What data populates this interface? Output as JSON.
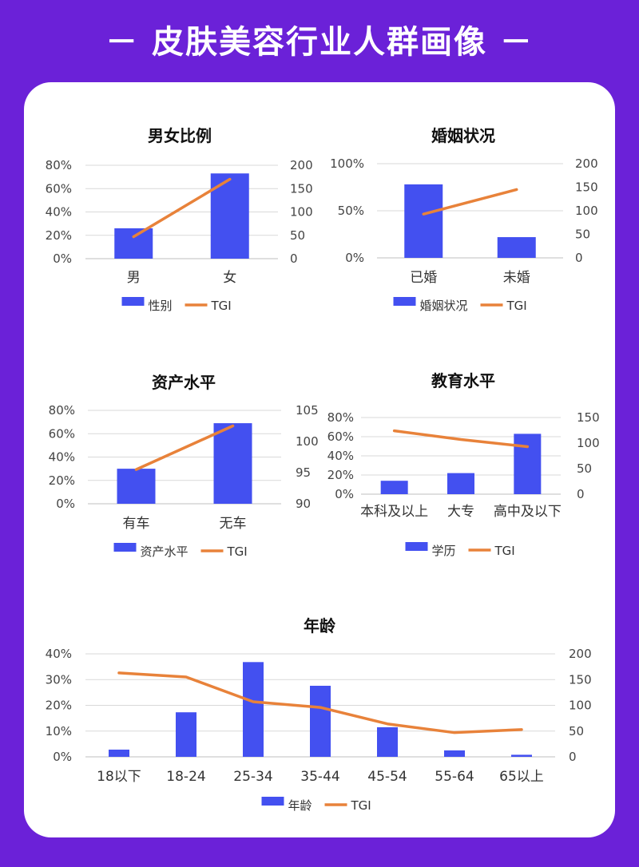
{
  "page": {
    "title": "－ 皮肤美容行业人群画像 －",
    "background_color": "#6b21d8",
    "card_color": "#ffffff"
  },
  "colors": {
    "bar": "#4350f0",
    "line": "#e8823a"
  },
  "chart_data": [
    {
      "type": "bar+line",
      "title": "男女比例",
      "categories": [
        "男",
        "女"
      ],
      "series": [
        {
          "name": "性别",
          "kind": "bar",
          "axis": "left",
          "values": [
            26,
            73
          ]
        },
        {
          "name": "TGI",
          "kind": "line",
          "axis": "right",
          "values": [
            47,
            170
          ]
        }
      ],
      "left_axis": {
        "ylim": [
          0,
          80
        ],
        "ticks": [
          0,
          20,
          40,
          60,
          80
        ],
        "tick_labels": [
          "0%",
          "20%",
          "40%",
          "60%",
          "80%"
        ]
      },
      "right_axis": {
        "ylim": [
          0,
          200
        ],
        "ticks": [
          0,
          50,
          100,
          150,
          200
        ],
        "tick_labels": [
          "0",
          "50",
          "100",
          "150",
          "200"
        ]
      },
      "legend": [
        "性别",
        "TGI"
      ]
    },
    {
      "type": "bar+line",
      "title": "婚姻状况",
      "categories": [
        "已婚",
        "未婚"
      ],
      "series": [
        {
          "name": "婚姻状况",
          "kind": "bar",
          "axis": "left",
          "values": [
            78,
            22
          ]
        },
        {
          "name": "TGI",
          "kind": "line",
          "axis": "right",
          "values": [
            93,
            145
          ]
        }
      ],
      "left_axis": {
        "ylim": [
          0,
          100
        ],
        "ticks": [
          0,
          50,
          100
        ],
        "tick_labels": [
          "0%",
          "50%",
          "100%"
        ]
      },
      "right_axis": {
        "ylim": [
          0,
          200
        ],
        "ticks": [
          0,
          50,
          100,
          150,
          200
        ],
        "tick_labels": [
          "0",
          "50",
          "100",
          "150",
          "200"
        ]
      },
      "legend": [
        "婚姻状况",
        "TGI"
      ]
    },
    {
      "type": "bar+line",
      "title": "资产水平",
      "categories": [
        "有车",
        "无车"
      ],
      "series": [
        {
          "name": "资产水平",
          "kind": "bar",
          "axis": "left",
          "values": [
            30,
            69
          ]
        },
        {
          "name": "TGI",
          "kind": "line",
          "axis": "right",
          "values": [
            95.5,
            102.5
          ]
        }
      ],
      "left_axis": {
        "ylim": [
          0,
          80
        ],
        "ticks": [
          0,
          20,
          40,
          60,
          80
        ],
        "tick_labels": [
          "0%",
          "20%",
          "40%",
          "60%",
          "80%"
        ]
      },
      "right_axis": {
        "ylim": [
          90,
          105
        ],
        "ticks": [
          90,
          95,
          100,
          105
        ],
        "tick_labels": [
          "90",
          "95",
          "100",
          "105"
        ]
      },
      "legend": [
        "资产水平",
        "TGI"
      ]
    },
    {
      "type": "bar+line",
      "title": "教育水平",
      "categories": [
        "本科及以上",
        "大专",
        "高中及以下"
      ],
      "series": [
        {
          "name": "学历",
          "kind": "bar",
          "axis": "left",
          "values": [
            14,
            22,
            63
          ]
        },
        {
          "name": "TGI",
          "kind": "line",
          "axis": "right",
          "values": [
            124,
            107,
            93
          ]
        }
      ],
      "left_axis": {
        "ylim": [
          0,
          80
        ],
        "ticks": [
          0,
          20,
          40,
          60,
          80
        ],
        "tick_labels": [
          "0%",
          "20%",
          "40%",
          "60%",
          "80%"
        ]
      },
      "right_axis": {
        "ylim": [
          0,
          150
        ],
        "ticks": [
          0,
          50,
          100,
          150
        ],
        "tick_labels": [
          "0",
          "50",
          "100",
          "150"
        ]
      },
      "legend": [
        "学历",
        "TGI"
      ]
    },
    {
      "type": "bar+line",
      "title": "年龄",
      "categories": [
        "18以下",
        "18-24",
        "25-34",
        "35-44",
        "45-54",
        "55-64",
        "65以上"
      ],
      "series": [
        {
          "name": "年龄",
          "kind": "bar",
          "axis": "left",
          "values": [
            2.8,
            17.3,
            36.8,
            27.6,
            11.5,
            2.5,
            0.8
          ]
        },
        {
          "name": "TGI",
          "kind": "line",
          "axis": "right",
          "values": [
            163,
            155,
            107,
            96,
            64,
            47,
            53
          ]
        }
      ],
      "left_axis": {
        "ylim": [
          0,
          40
        ],
        "ticks": [
          0,
          10,
          20,
          30,
          40
        ],
        "tick_labels": [
          "0%",
          "10%",
          "20%",
          "30%",
          "40%"
        ]
      },
      "right_axis": {
        "ylim": [
          0,
          200
        ],
        "ticks": [
          0,
          50,
          100,
          150,
          200
        ],
        "tick_labels": [
          "0",
          "50",
          "100",
          "150",
          "200"
        ]
      },
      "legend": [
        "年龄",
        "TGI"
      ]
    }
  ]
}
